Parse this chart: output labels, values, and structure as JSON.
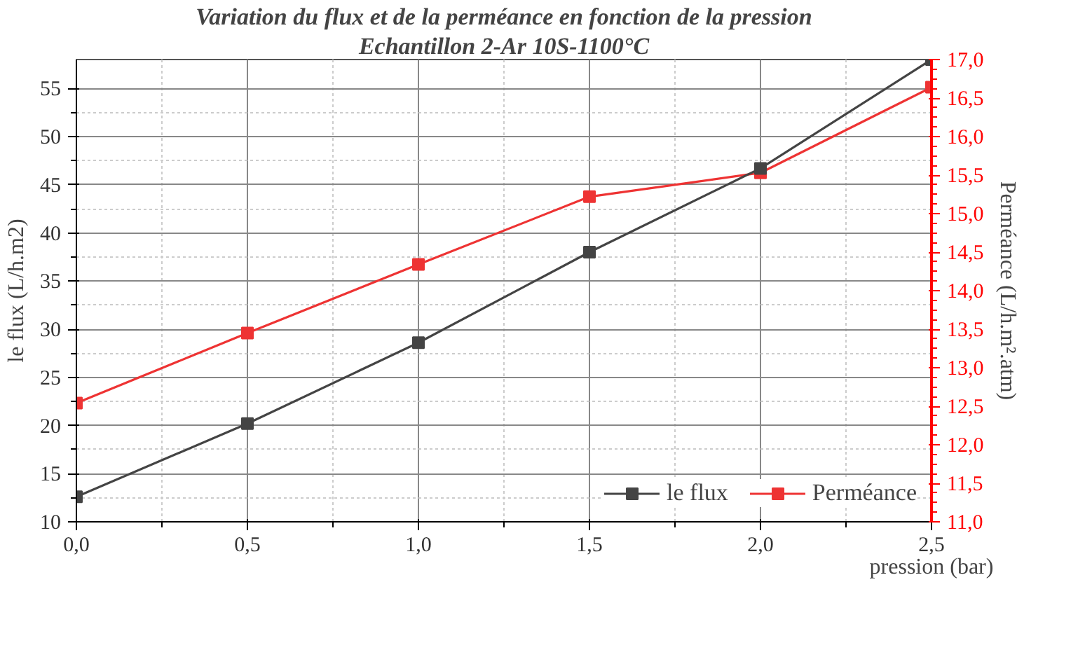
{
  "chart_data": {
    "type": "line",
    "title": "Variation du flux et de la perméance en fonction de la pression",
    "subtitle": "Echantillon 2-Ar 10S-1100°C",
    "xlabel": "pression (bar)",
    "ylabel": "le flux (L/h.m2)",
    "y2label": "Perméance (L/h.m².atm)",
    "x": [
      0,
      0.5,
      1.0,
      1.5,
      2.0,
      2.5
    ],
    "series": [
      {
        "name": "le flux",
        "color": "#444444",
        "values": [
          12.6,
          20.2,
          28.6,
          38.0,
          46.7,
          58.0
        ]
      },
      {
        "name": "Perméance",
        "color": "#ee3333",
        "axis": "y2",
        "values": [
          12.54,
          13.45,
          14.34,
          15.22,
          15.53,
          16.64
        ]
      }
    ],
    "xlim": [
      0,
      2.5
    ],
    "ylim": [
      10,
      58
    ],
    "y2lim": [
      11,
      17
    ],
    "xticks": [
      {
        "value": 0,
        "label": "0,0"
      },
      {
        "value": 0.5,
        "label": "0,5"
      },
      {
        "value": 1.0,
        "label": "1,0"
      },
      {
        "value": 1.5,
        "label": "1,5"
      },
      {
        "value": 2.0,
        "label": "2,0"
      },
      {
        "value": 2.5,
        "label": "2,5"
      }
    ],
    "yticks": [
      10,
      15,
      20,
      25,
      30,
      35,
      40,
      45,
      50,
      55
    ],
    "y2ticks": [
      {
        "value": 11,
        "label": "11,0"
      },
      {
        "value": 11.5,
        "label": "11,5"
      },
      {
        "value": 12,
        "label": "12,0"
      },
      {
        "value": 12.5,
        "label": "12,5"
      },
      {
        "value": 13,
        "label": "13,0"
      },
      {
        "value": 13.5,
        "label": "13,5"
      },
      {
        "value": 14,
        "label": "14,0"
      },
      {
        "value": 14.5,
        "label": "14,5"
      },
      {
        "value": 15,
        "label": "15,0"
      },
      {
        "value": 15.5,
        "label": "15,5"
      },
      {
        "value": 16,
        "label": "16,0"
      },
      {
        "value": 16.5,
        "label": "16,5"
      },
      {
        "value": 17,
        "label": "17,0"
      }
    ],
    "grid": true,
    "legend": "bottom right",
    "marker": "square",
    "line_style": "solid"
  }
}
